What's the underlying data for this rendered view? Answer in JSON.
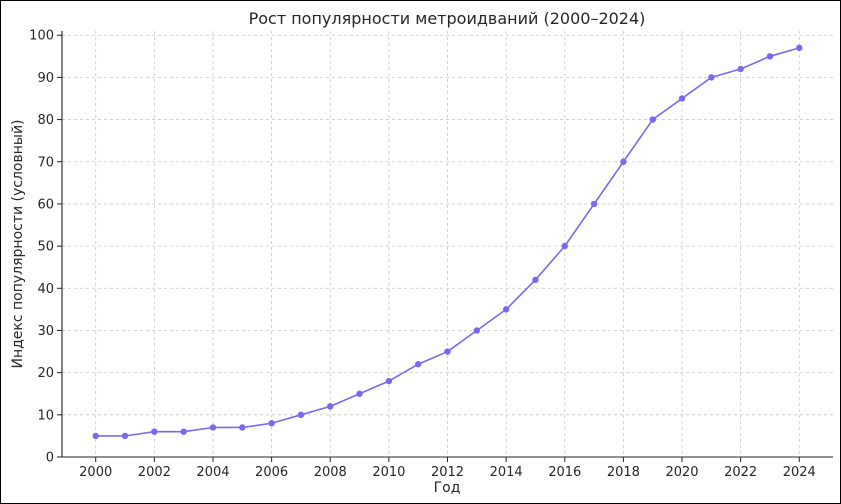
{
  "chart_data": {
    "type": "line",
    "title": "Рост популярности метроидваний (2000–2024)",
    "xlabel": "Год",
    "ylabel": "Индекс популярности (условный)",
    "x": [
      2000,
      2001,
      2002,
      2003,
      2004,
      2005,
      2006,
      2007,
      2008,
      2009,
      2010,
      2011,
      2012,
      2013,
      2014,
      2015,
      2016,
      2017,
      2018,
      2019,
      2020,
      2021,
      2022,
      2023,
      2024
    ],
    "series": [
      {
        "values": [
          5,
          5,
          6,
          6,
          7,
          7,
          8,
          10,
          12,
          15,
          18,
          22,
          25,
          30,
          35,
          42,
          50,
          60,
          70,
          80,
          85,
          90,
          92,
          95,
          97
        ],
        "color": "#7b68ee"
      }
    ],
    "xlim": [
      1998.85,
      2025.15
    ],
    "ylim": [
      0,
      101
    ],
    "xticks": [
      2000,
      2002,
      2004,
      2006,
      2008,
      2010,
      2012,
      2014,
      2016,
      2018,
      2020,
      2022,
      2024
    ],
    "yticks": [
      0,
      10,
      20,
      30,
      40,
      50,
      60,
      70,
      80,
      90,
      100
    ],
    "grid": true
  }
}
